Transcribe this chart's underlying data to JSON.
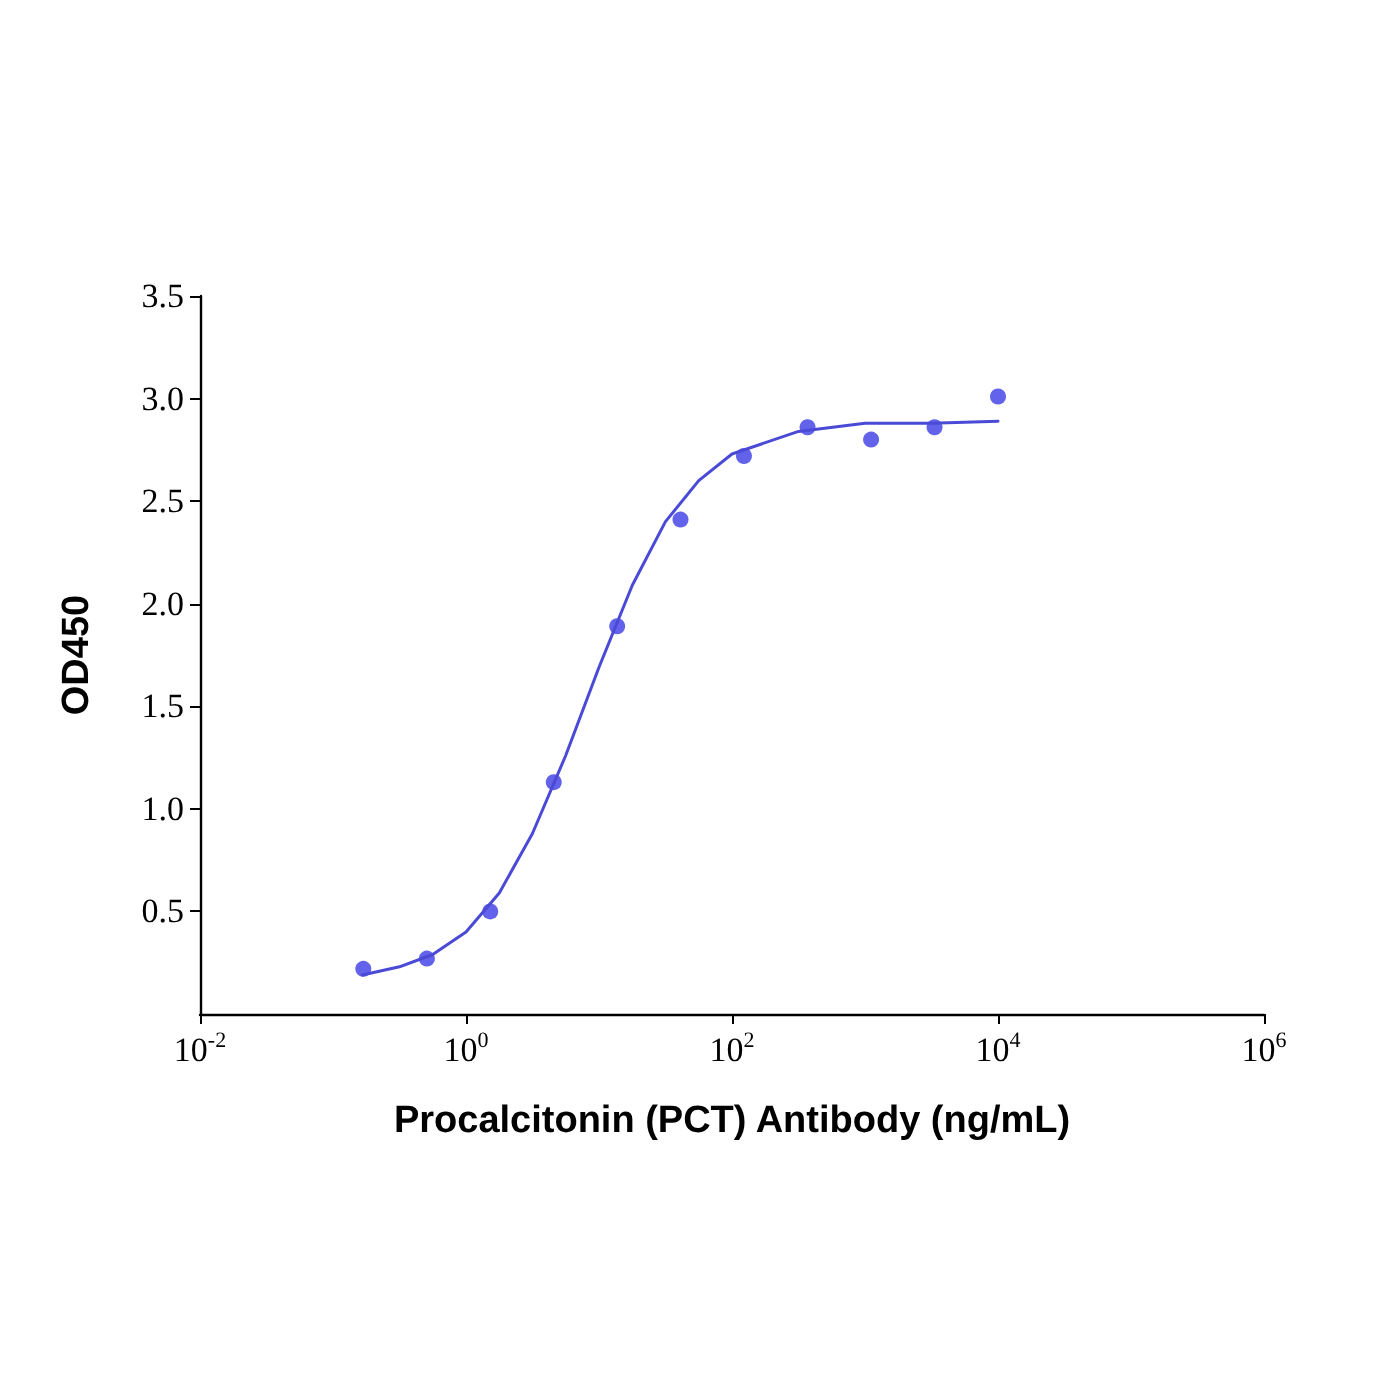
{
  "chart_data": {
    "type": "scatter",
    "xlabel": "Procalcitonin (PCT) Antibody (ng/mL)",
    "ylabel": "OD450",
    "log": "x",
    "xlim": [
      0.01,
      1000000
    ],
    "xticks": [
      {
        "value": 0.01,
        "label": "10$^{-2}$"
      },
      {
        "value": 1,
        "label": "10$^{0}$"
      },
      {
        "value": 100,
        "label": "10$^{2}$"
      },
      {
        "value": 10000,
        "label": "10$^{4}$"
      },
      {
        "value": 1000000,
        "label": "10$^{6}$"
      }
    ],
    "ylim": [
      0,
      3.5
    ],
    "yticks": [
      0.5,
      {
        "value": 1,
        "label": "1.0"
      },
      1.5,
      {
        "value": 2,
        "label": "2.0"
      },
      2.5,
      {
        "value": 3,
        "label": "3.0"
      },
      3.5
    ],
    "grid": false,
    "marker": "circle",
    "series": [
      {
        "color": "#3b3be6",
        "x": [
          0.169,
          0.508,
          1.52,
          4.57,
          13.7,
          41,
          123,
          370,
          1111,
          3333,
          10000
        ],
        "values": [
          0.22,
          0.27,
          0.5,
          1.13,
          1.89,
          2.41,
          2.72,
          2.86,
          2.8,
          2.86,
          3.01
        ]
      },
      {
        "type": "line",
        "color": "#4a4ad6",
        "line_style": "solid",
        "marker": "none",
        "x": [
          0.166,
          0.316,
          0.562,
          1,
          1.78,
          3.16,
          5.62,
          10,
          17.8,
          31.6,
          56.2,
          100,
          316,
          1000,
          3162,
          10000
        ],
        "values": [
          0.19,
          0.23,
          0.29,
          0.4,
          0.59,
          0.88,
          1.26,
          1.69,
          2.09,
          2.4,
          2.6,
          2.73,
          2.84,
          2.88,
          2.88,
          2.89
        ]
      }
    ]
  }
}
